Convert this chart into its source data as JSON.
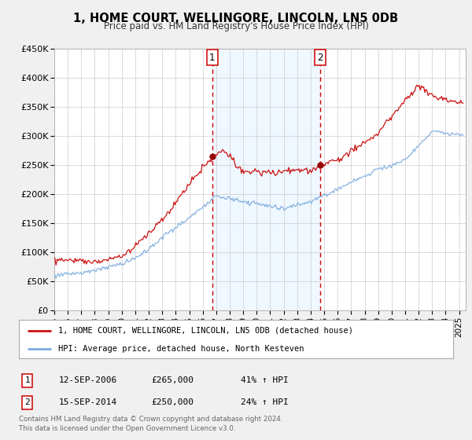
{
  "title": "1, HOME COURT, WELLINGORE, LINCOLN, LN5 0DB",
  "subtitle": "Price paid vs. HM Land Registry's House Price Index (HPI)",
  "background_color": "#f0f0f0",
  "plot_bg_color": "#ffffff",
  "grid_color": "#cccccc",
  "ylim": [
    0,
    450000
  ],
  "yticks": [
    0,
    50000,
    100000,
    150000,
    200000,
    250000,
    300000,
    350000,
    400000,
    450000
  ],
  "ytick_labels": [
    "£0",
    "£50K",
    "£100K",
    "£150K",
    "£200K",
    "£250K",
    "£300K",
    "£350K",
    "£400K",
    "£450K"
  ],
  "xlim_start": 1995.0,
  "xlim_end": 2025.5,
  "xtick_years": [
    1995,
    1996,
    1997,
    1998,
    1999,
    2000,
    2001,
    2002,
    2003,
    2004,
    2005,
    2006,
    2007,
    2008,
    2009,
    2010,
    2011,
    2012,
    2013,
    2014,
    2015,
    2016,
    2017,
    2018,
    2019,
    2020,
    2021,
    2022,
    2023,
    2024,
    2025
  ],
  "sale1_x": 2006.71,
  "sale1_y": 265000,
  "sale2_x": 2014.71,
  "sale2_y": 250000,
  "vline1_x": 2006.71,
  "vline2_x": 2014.71,
  "vline_color": "#cc0000",
  "shade_color": "#ddeeff",
  "shade_alpha": 0.45,
  "hpi_line_color": "#7aaadd",
  "property_line_color": "#cc1111",
  "legend_line1": "1, HOME COURT, WELLINGORE, LINCOLN, LN5 0DB (detached house)",
  "legend_line2": "HPI: Average price, detached house, North Kesteven",
  "table_row1": [
    "1",
    "12-SEP-2006",
    "£265,000",
    "41% ↑ HPI"
  ],
  "table_row2": [
    "2",
    "15-SEP-2014",
    "£250,000",
    "24% ↑ HPI"
  ],
  "footer1": "Contains HM Land Registry data © Crown copyright and database right 2024.",
  "footer2": "This data is licensed under the Open Government Licence v3.0."
}
